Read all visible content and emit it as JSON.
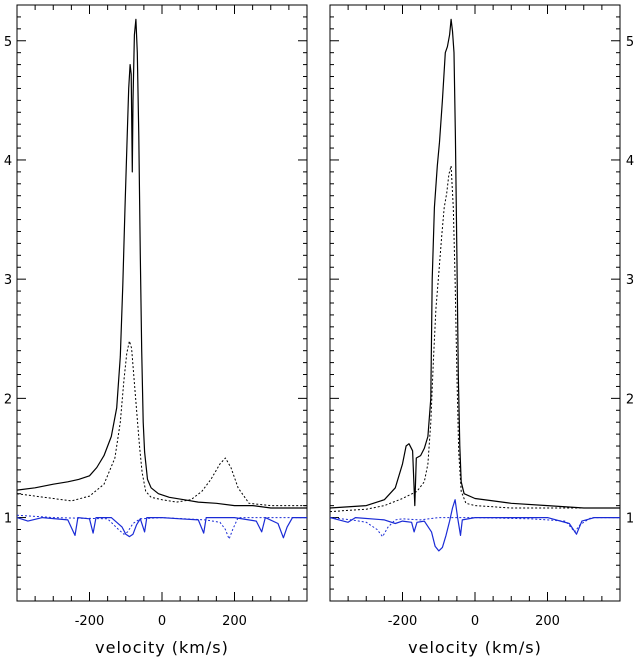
{
  "chart_data": [
    {
      "type": "line",
      "panel": "left",
      "xlabel": "velocity (km/s)",
      "ylabel": "",
      "xlim": [
        -400,
        400
      ],
      "ylim": [
        0.3,
        5.3
      ],
      "xticks": [
        -200,
        0,
        200
      ],
      "yticks": [
        1,
        2,
        3,
        4,
        5
      ],
      "grid": false,
      "series": [
        {
          "style": "solid",
          "color": "#000000",
          "points": [
            [
              -400,
              1.23
            ],
            [
              -350,
              1.25
            ],
            [
              -300,
              1.28
            ],
            [
              -260,
              1.3
            ],
            [
              -230,
              1.32
            ],
            [
              -200,
              1.35
            ],
            [
              -180,
              1.42
            ],
            [
              -160,
              1.52
            ],
            [
              -140,
              1.68
            ],
            [
              -125,
              1.92
            ],
            [
              -115,
              2.35
            ],
            [
              -108,
              2.95
            ],
            [
              -102,
              3.6
            ],
            [
              -96,
              4.2
            ],
            [
              -92,
              4.6
            ],
            [
              -88,
              4.8
            ],
            [
              -85,
              4.72
            ],
            [
              -82,
              3.9
            ],
            [
              -80,
              4.5
            ],
            [
              -76,
              5.05
            ],
            [
              -72,
              5.18
            ],
            [
              -68,
              4.9
            ],
            [
              -64,
              4.2
            ],
            [
              -60,
              3.2
            ],
            [
              -56,
              2.4
            ],
            [
              -52,
              1.8
            ],
            [
              -48,
              1.55
            ],
            [
              -40,
              1.32
            ],
            [
              -30,
              1.25
            ],
            [
              -10,
              1.2
            ],
            [
              20,
              1.17
            ],
            [
              60,
              1.15
            ],
            [
              100,
              1.13
            ],
            [
              150,
              1.12
            ],
            [
              200,
              1.1
            ],
            [
              250,
              1.1
            ],
            [
              300,
              1.08
            ],
            [
              350,
              1.08
            ],
            [
              400,
              1.08
            ]
          ]
        },
        {
          "style": "dotted",
          "color": "#000000",
          "points": [
            [
              -400,
              1.2
            ],
            [
              -350,
              1.18
            ],
            [
              -300,
              1.16
            ],
            [
              -250,
              1.14
            ],
            [
              -200,
              1.18
            ],
            [
              -160,
              1.28
            ],
            [
              -130,
              1.5
            ],
            [
              -115,
              1.8
            ],
            [
              -105,
              2.15
            ],
            [
              -97,
              2.38
            ],
            [
              -90,
              2.48
            ],
            [
              -84,
              2.42
            ],
            [
              -78,
              2.2
            ],
            [
              -70,
              1.9
            ],
            [
              -62,
              1.6
            ],
            [
              -55,
              1.38
            ],
            [
              -45,
              1.22
            ],
            [
              -30,
              1.17
            ],
            [
              0,
              1.15
            ],
            [
              40,
              1.13
            ],
            [
              80,
              1.15
            ],
            [
              110,
              1.22
            ],
            [
              135,
              1.32
            ],
            [
              160,
              1.45
            ],
            [
              175,
              1.5
            ],
            [
              190,
              1.42
            ],
            [
              210,
              1.25
            ],
            [
              240,
              1.12
            ],
            [
              300,
              1.1
            ],
            [
              350,
              1.1
            ],
            [
              400,
              1.1
            ]
          ]
        },
        {
          "style": "solid",
          "color": "#1a2bd6",
          "points": [
            [
              -400,
              1.0
            ],
            [
              -370,
              0.97
            ],
            [
              -330,
              1.0
            ],
            [
              -260,
              0.98
            ],
            [
              -240,
              0.85
            ],
            [
              -232,
              1.0
            ],
            [
              -200,
              0.99
            ],
            [
              -190,
              0.87
            ],
            [
              -182,
              1.0
            ],
            [
              -140,
              1.0
            ],
            [
              -110,
              0.92
            ],
            [
              -100,
              0.86
            ],
            [
              -90,
              0.84
            ],
            [
              -80,
              0.86
            ],
            [
              -70,
              0.94
            ],
            [
              -60,
              0.99
            ],
            [
              -48,
              0.88
            ],
            [
              -42,
              1.0
            ],
            [
              0,
              1.0
            ],
            [
              50,
              0.99
            ],
            [
              100,
              0.98
            ],
            [
              115,
              0.87
            ],
            [
              122,
              1.0
            ],
            [
              200,
              1.0
            ],
            [
              260,
              0.97
            ],
            [
              275,
              0.88
            ],
            [
              285,
              1.0
            ],
            [
              320,
              0.95
            ],
            [
              335,
              0.83
            ],
            [
              345,
              0.92
            ],
            [
              360,
              1.0
            ],
            [
              400,
              1.0
            ]
          ]
        },
        {
          "style": "dotted",
          "color": "#1a2bd6",
          "points": [
            [
              -400,
              1.02
            ],
            [
              -300,
              1.0
            ],
            [
              -150,
              0.99
            ],
            [
              -120,
              0.9
            ],
            [
              -105,
              0.86
            ],
            [
              -95,
              0.88
            ],
            [
              -80,
              0.95
            ],
            [
              -60,
              0.99
            ],
            [
              0,
              1.0
            ],
            [
              120,
              0.98
            ],
            [
              160,
              0.96
            ],
            [
              175,
              0.9
            ],
            [
              185,
              0.82
            ],
            [
              195,
              0.9
            ],
            [
              210,
              1.0
            ],
            [
              300,
              1.0
            ],
            [
              400,
              1.0
            ]
          ]
        }
      ]
    },
    {
      "type": "line",
      "panel": "right",
      "xlabel": "velocity (km/s)",
      "ylabel": "",
      "xlim": [
        -400,
        400
      ],
      "ylim": [
        0.3,
        5.3
      ],
      "xticks": [
        -200,
        0,
        200
      ],
      "yticks": [
        1,
        2,
        3,
        4,
        5
      ],
      "grid": false,
      "series": [
        {
          "style": "solid",
          "color": "#000000",
          "points": [
            [
              -400,
              1.08
            ],
            [
              -300,
              1.1
            ],
            [
              -250,
              1.15
            ],
            [
              -220,
              1.25
            ],
            [
              -200,
              1.45
            ],
            [
              -190,
              1.6
            ],
            [
              -182,
              1.62
            ],
            [
              -172,
              1.56
            ],
            [
              -166,
              1.1
            ],
            [
              -162,
              1.5
            ],
            [
              -150,
              1.52
            ],
            [
              -140,
              1.58
            ],
            [
              -130,
              1.68
            ],
            [
              -122,
              2.0
            ],
            [
              -118,
              3.0
            ],
            [
              -112,
              3.6
            ],
            [
              -104,
              3.95
            ],
            [
              -98,
              4.15
            ],
            [
              -90,
              4.5
            ],
            [
              -82,
              4.9
            ],
            [
              -76,
              4.95
            ],
            [
              -70,
              5.05
            ],
            [
              -66,
              5.18
            ],
            [
              -62,
              5.08
            ],
            [
              -58,
              4.9
            ],
            [
              -54,
              4.2
            ],
            [
              -50,
              3.2
            ],
            [
              -46,
              2.2
            ],
            [
              -42,
              1.6
            ],
            [
              -38,
              1.3
            ],
            [
              -30,
              1.2
            ],
            [
              0,
              1.16
            ],
            [
              50,
              1.14
            ],
            [
              100,
              1.12
            ],
            [
              200,
              1.1
            ],
            [
              300,
              1.08
            ],
            [
              400,
              1.08
            ]
          ]
        },
        {
          "style": "dotted",
          "color": "#000000",
          "points": [
            [
              -400,
              1.05
            ],
            [
              -300,
              1.07
            ],
            [
              -250,
              1.1
            ],
            [
              -200,
              1.16
            ],
            [
              -160,
              1.22
            ],
            [
              -140,
              1.3
            ],
            [
              -130,
              1.45
            ],
            [
              -122,
              1.8
            ],
            [
              -115,
              2.3
            ],
            [
              -108,
              2.75
            ],
            [
              -100,
              3.05
            ],
            [
              -92,
              3.35
            ],
            [
              -85,
              3.6
            ],
            [
              -78,
              3.72
            ],
            [
              -72,
              3.88
            ],
            [
              -66,
              3.95
            ],
            [
              -60,
              3.6
            ],
            [
              -55,
              3.0
            ],
            [
              -50,
              2.2
            ],
            [
              -45,
              1.55
            ],
            [
              -38,
              1.22
            ],
            [
              -25,
              1.12
            ],
            [
              0,
              1.1
            ],
            [
              100,
              1.08
            ],
            [
              200,
              1.08
            ],
            [
              300,
              1.08
            ],
            [
              400,
              1.08
            ]
          ]
        },
        {
          "style": "solid",
          "color": "#1a2bd6",
          "points": [
            [
              -400,
              1.0
            ],
            [
              -350,
              0.96
            ],
            [
              -330,
              1.0
            ],
            [
              -250,
              0.98
            ],
            [
              -220,
              0.95
            ],
            [
              -200,
              0.97
            ],
            [
              -175,
              0.96
            ],
            [
              -168,
              0.88
            ],
            [
              -160,
              0.96
            ],
            [
              -140,
              0.97
            ],
            [
              -120,
              0.88
            ],
            [
              -110,
              0.76
            ],
            [
              -100,
              0.72
            ],
            [
              -90,
              0.75
            ],
            [
              -80,
              0.85
            ],
            [
              -70,
              0.97
            ],
            [
              -62,
              1.08
            ],
            [
              -55,
              1.15
            ],
            [
              -48,
              1.0
            ],
            [
              -40,
              0.85
            ],
            [
              -35,
              0.98
            ],
            [
              0,
              1.0
            ],
            [
              100,
              1.0
            ],
            [
              200,
              1.0
            ],
            [
              260,
              0.95
            ],
            [
              280,
              0.86
            ],
            [
              295,
              0.97
            ],
            [
              330,
              1.0
            ],
            [
              400,
              1.0
            ]
          ]
        },
        {
          "style": "dotted",
          "color": "#1a2bd6",
          "points": [
            [
              -400,
              1.0
            ],
            [
              -340,
              0.98
            ],
            [
              -300,
              0.96
            ],
            [
              -270,
              0.9
            ],
            [
              -255,
              0.84
            ],
            [
              -240,
              0.92
            ],
            [
              -220,
              0.98
            ],
            [
              -200,
              0.99
            ],
            [
              -150,
              0.98
            ],
            [
              -100,
              1.0
            ],
            [
              0,
              1.0
            ],
            [
              150,
              0.99
            ],
            [
              250,
              0.97
            ],
            [
              275,
              0.88
            ],
            [
              290,
              0.94
            ],
            [
              320,
              1.0
            ],
            [
              400,
              1.0
            ]
          ]
        }
      ]
    }
  ]
}
